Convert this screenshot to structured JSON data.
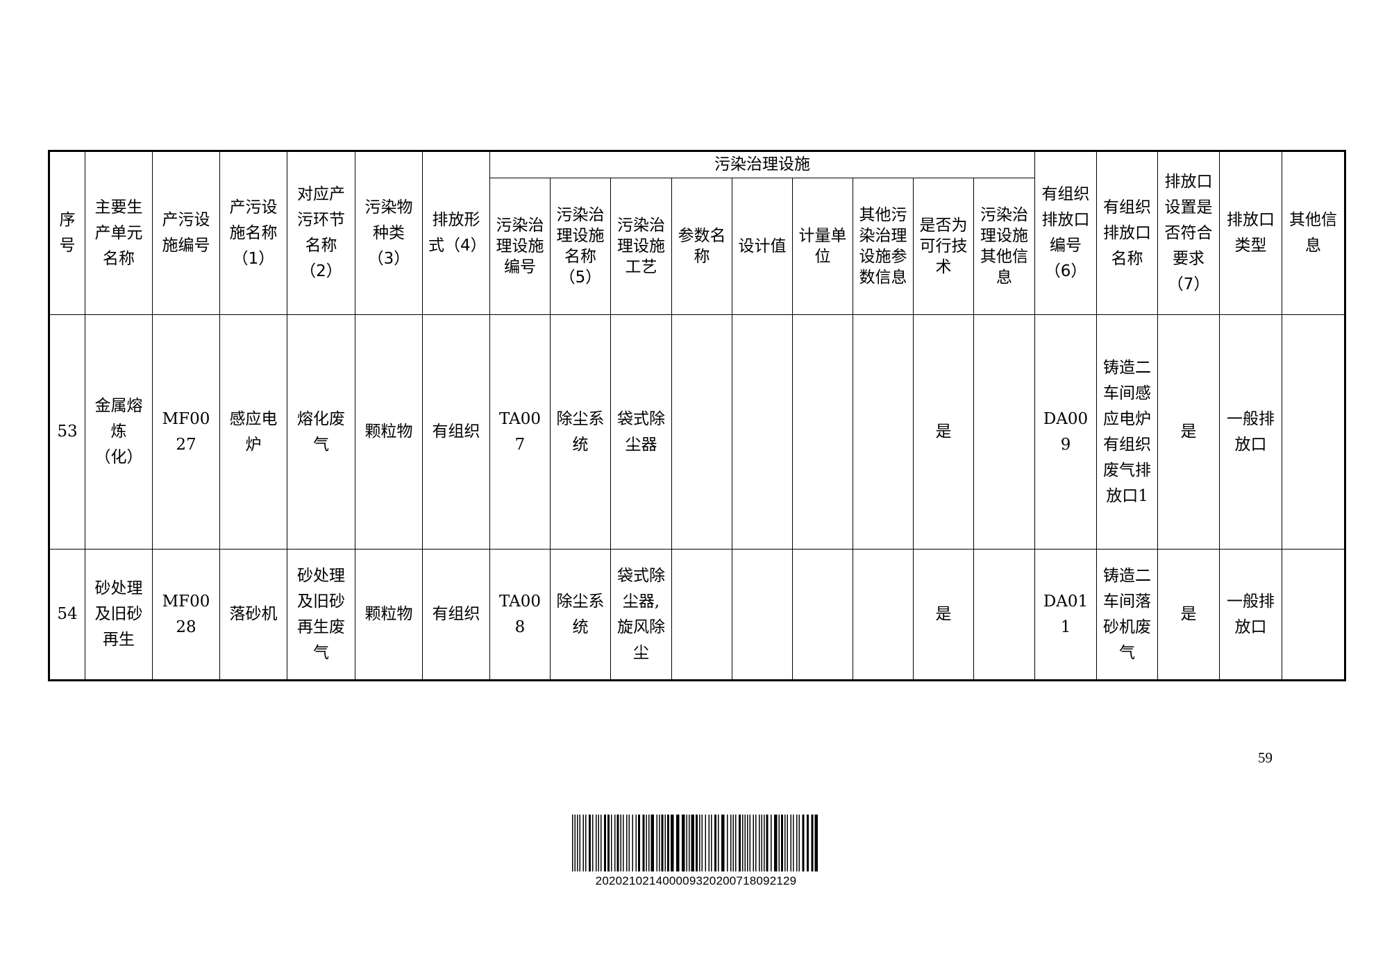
{
  "table": {
    "group_header": "污染治理设施",
    "headers": {
      "seq": "序号",
      "unit": "主要生产单元名称",
      "facility_id": "产污设施编号",
      "facility_name": "产污设施名称（1）",
      "stage": "对应产污环节名称（2）",
      "pollutant": "污染物种类（3）",
      "discharge": "排放形式（4）",
      "treat_id": "污染治理设施编号",
      "treat_name": "污染治理设施名称（5）",
      "treat_process": "污染治理设施工艺",
      "param_name": "参数名称",
      "design_value": "设计值",
      "unit_measure": "计量单位",
      "other_param": "其他污染治理设施参数信息",
      "feasible": "是否为可行技术",
      "treat_other": "污染治理设施其他信息",
      "outlet_id": "有组织排放口编号（6）",
      "outlet_name": "有组织排放口名称",
      "outlet_ok": "排放口设置是否符合要求（7）",
      "outlet_type": "排放口类型",
      "other": "其他信息"
    },
    "rows": [
      {
        "seq": "53",
        "unit": "金属熔炼（化）",
        "facility_id": "MF0027",
        "facility_name": "感应电炉",
        "stage": "熔化废气",
        "pollutant": "颗粒物",
        "discharge": "有组织",
        "treat_id": "TA007",
        "treat_name": "除尘系统",
        "treat_process": "袋式除尘器",
        "param_name": "",
        "design_value": "",
        "unit_measure": "",
        "other_param": "",
        "feasible": "是",
        "treat_other": "",
        "outlet_id": "DA009",
        "outlet_name": "铸造二车间感应电炉有组织废气排放口1",
        "outlet_ok": "是",
        "outlet_type": "一般排放口",
        "other": ""
      },
      {
        "seq": "54",
        "unit": "砂处理及旧砂再生",
        "facility_id": "MF0028",
        "facility_name": "落砂机",
        "stage": "砂处理及旧砂再生废气",
        "pollutant": "颗粒物",
        "discharge": "有组织",
        "treat_id": "TA008",
        "treat_name": "除尘系统",
        "treat_process": "袋式除尘器,旋风除尘",
        "param_name": "",
        "design_value": "",
        "unit_measure": "",
        "other_param": "",
        "feasible": "是",
        "treat_other": "",
        "outlet_id": "DA011",
        "outlet_name": "铸造二车间落砂机废气",
        "outlet_ok": "是",
        "outlet_type": "一般排放口",
        "other": ""
      }
    ]
  },
  "page_number": "59",
  "barcode": {
    "number": "202021021400009320200718092129"
  }
}
